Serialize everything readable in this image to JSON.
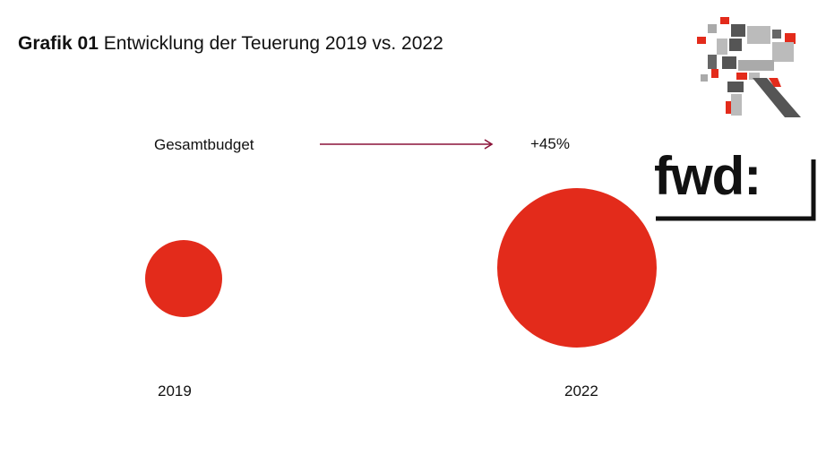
{
  "header": {
    "title_prefix": "Grafik 01",
    "title_text": "Entwicklung der Teuerung 2019 vs. 2022"
  },
  "logos": {
    "r_logo_icon": "r-logo-icon",
    "fwd_logo_text": "fwd:"
  },
  "colors": {
    "bubble": "#e32b1b",
    "arrow": "#8b1238",
    "text": "#111111"
  },
  "chart_data": {
    "type": "bubble",
    "series_label": "Gesamtbudget",
    "categories": [
      "2019",
      "2022"
    ],
    "relative_sizes": [
      1.0,
      1.45
    ],
    "change_label": "+45%"
  }
}
